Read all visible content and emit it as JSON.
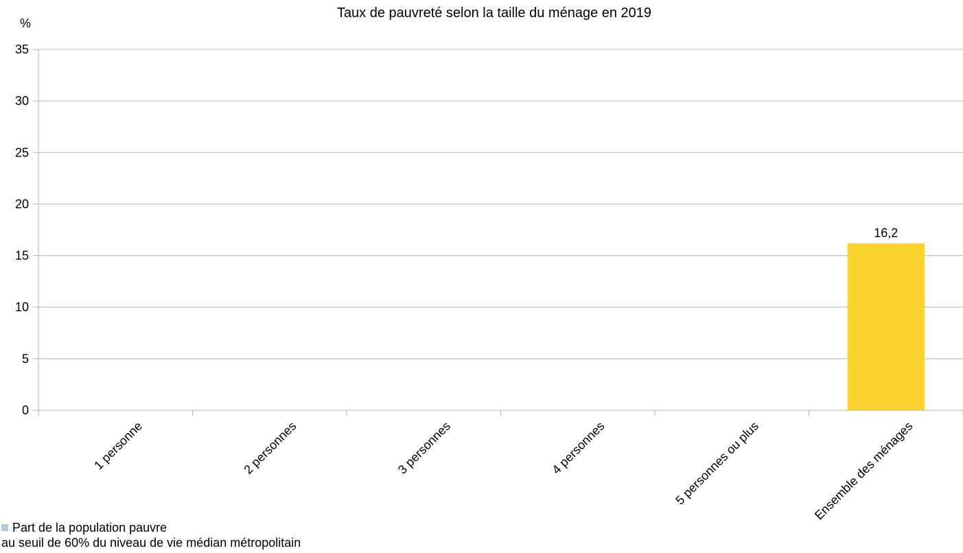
{
  "chart_data": {
    "type": "bar",
    "title": "Taux de pauvreté selon la taille du ménage en 2019",
    "ylabel": "%",
    "xlabel": "",
    "ylim": [
      0,
      35
    ],
    "yticks": [
      0,
      5,
      10,
      15,
      20,
      25,
      30,
      35
    ],
    "grid": "horizontal",
    "categories": [
      "1 personne",
      "2 personnes",
      "3 personnes",
      "4 personnes",
      "5 personnes ou plus",
      "Ensemble des ménages"
    ],
    "series": [
      {
        "name": "Part de la population pauvre",
        "values": [
          null,
          null,
          null,
          null,
          null,
          16.2
        ],
        "labels": [
          "",
          "",
          "",
          "",
          "",
          "16,2"
        ],
        "colors": [
          "#b4c7dc",
          "#b4c7dc",
          "#b4c7dc",
          "#b4c7dc",
          "#b4c7dc",
          "#fcd22e"
        ]
      }
    ],
    "legend": {
      "placement": "bottom-left",
      "line1": "Part de la population pauvre",
      "line2": "au seuil de 60% du niveau de vie médian métropolitain",
      "swatch_color": "#b4c7dc"
    }
  }
}
